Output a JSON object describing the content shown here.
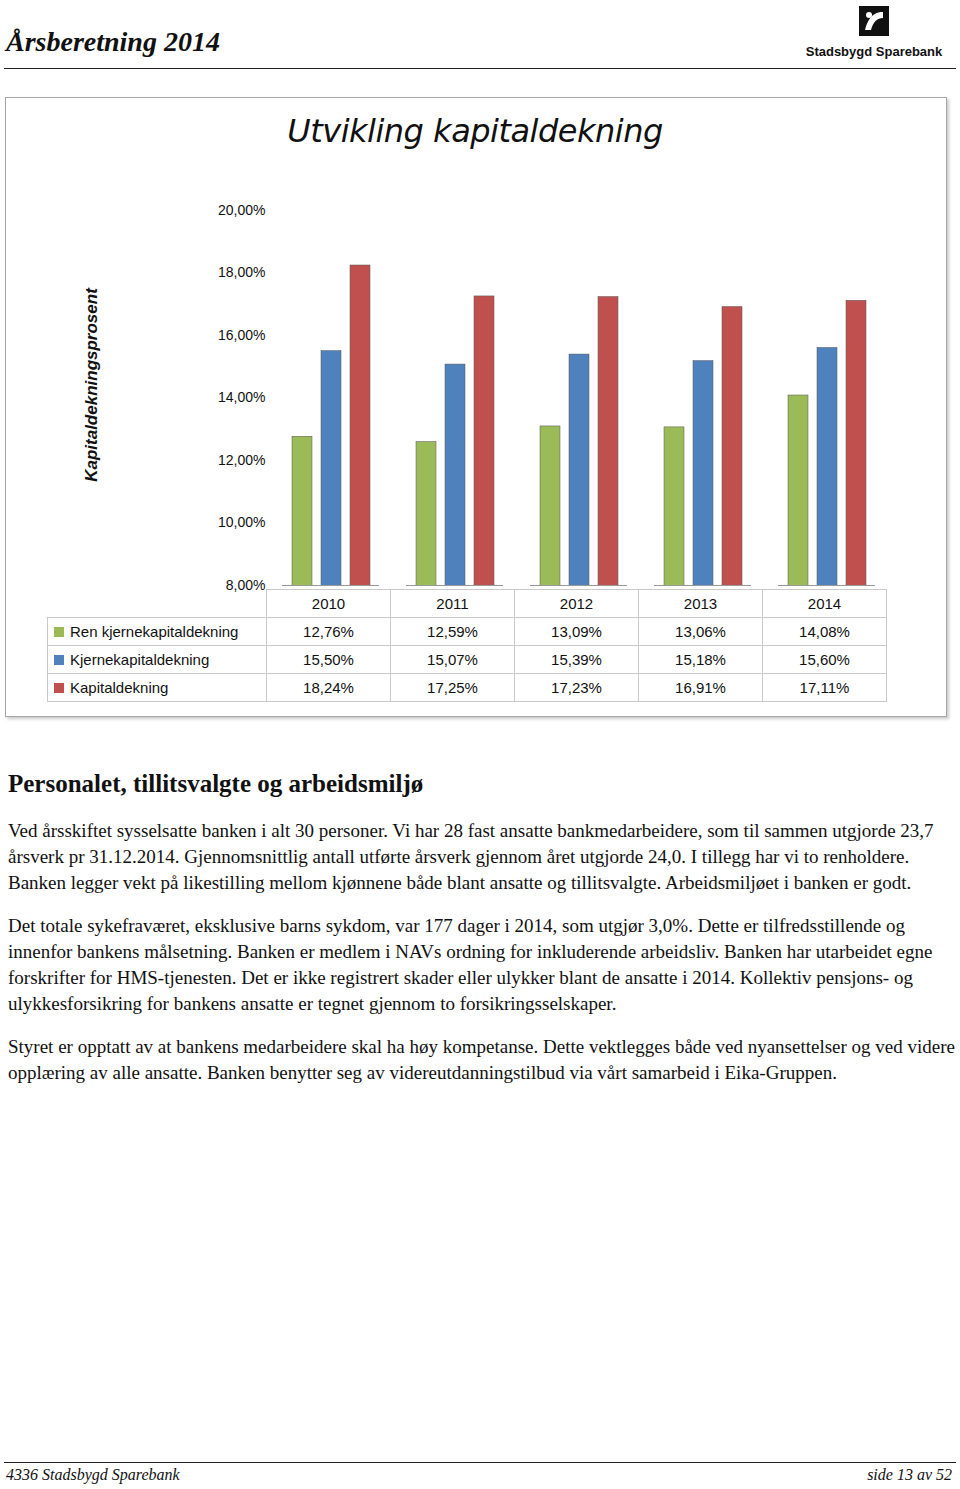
{
  "header": {
    "title": "Årsberetning 2014",
    "logo_text": "Stadsbygd Sparebank"
  },
  "chart_data": {
    "type": "bar",
    "title": "Utvikling kapitaldekning",
    "y_label": "Kapitaldekningsprosent",
    "categories": [
      "2010",
      "2011",
      "2012",
      "2013",
      "2014"
    ],
    "series": [
      {
        "name": "Ren kjernekapitaldekning",
        "color": "#9bbb59",
        "values": [
          12.76,
          12.59,
          13.09,
          13.06,
          14.08
        ],
        "value_labels": [
          "12,76%",
          "12,59%",
          "13,09%",
          "13,06%",
          "14,08%"
        ]
      },
      {
        "name": "Kjernekapitaldekning",
        "color": "#4f81bd",
        "values": [
          15.5,
          15.07,
          15.39,
          15.18,
          15.6
        ],
        "value_labels": [
          "15,50%",
          "15,07%",
          "15,39%",
          "15,18%",
          "15,60%"
        ]
      },
      {
        "name": "Kapitaldekning",
        "color": "#c0504d",
        "values": [
          18.24,
          17.25,
          17.23,
          16.91,
          17.11
        ],
        "value_labels": [
          "18,24%",
          "17,25%",
          "17,23%",
          "16,91%",
          "17,11%"
        ]
      }
    ],
    "ylim": [
      8,
      20
    ],
    "yticks": [
      {
        "value": 8,
        "label": "8,00%"
      },
      {
        "value": 10,
        "label": "10,00%"
      },
      {
        "value": 12,
        "label": "12,00%"
      },
      {
        "value": 14,
        "label": "14,00%"
      },
      {
        "value": 16,
        "label": "16,00%"
      },
      {
        "value": 18,
        "label": "18,00%"
      },
      {
        "value": 20,
        "label": "20,00%"
      }
    ],
    "grid": false
  },
  "section": {
    "heading": "Personalet, tillitsvalgte og arbeidsmiljø",
    "paragraphs": [
      "Ved årsskiftet sysselsatte banken i alt 30 personer. Vi har 28 fast ansatte bankmedarbeidere, som til sammen utgjorde 23,7 årsverk pr 31.12.2014. Gjennomsnittlig antall utførte årsverk gjennom året utgjorde 24,0. I tillegg har vi to renholdere. Banken legger vekt på likestilling mellom kjønnene både blant ansatte og tillitsvalgte. Arbeidsmiljøet i banken er godt.",
      "Det totale sykefraværet, eksklusive barns sykdom, var 177 dager i 2014, som utgjør 3,0%. Dette er tilfredsstillende og innenfor bankens målsetning. Banken er medlem i NAVs ordning for inkluderende arbeidsliv. Banken har utarbeidet egne forskrifter for HMS-tjenesten. Det er ikke registrert skader eller ulykker blant de ansatte i 2014. Kollektiv pensjons- og ulykkesforsikring for bankens ansatte er tegnet gjennom to forsikringsselskaper.",
      "Styret er opptatt av at bankens medarbeidere skal ha høy kompetanse. Dette vektlegges både ved nyansettelser og ved videre opplæring av alle ansatte. Banken benytter seg av videreutdanningstilbud via vårt samarbeid i Eika-Gruppen."
    ]
  },
  "footer": {
    "left": "4336 Stadsbygd Sparebank",
    "right": "side 13 av 52"
  }
}
